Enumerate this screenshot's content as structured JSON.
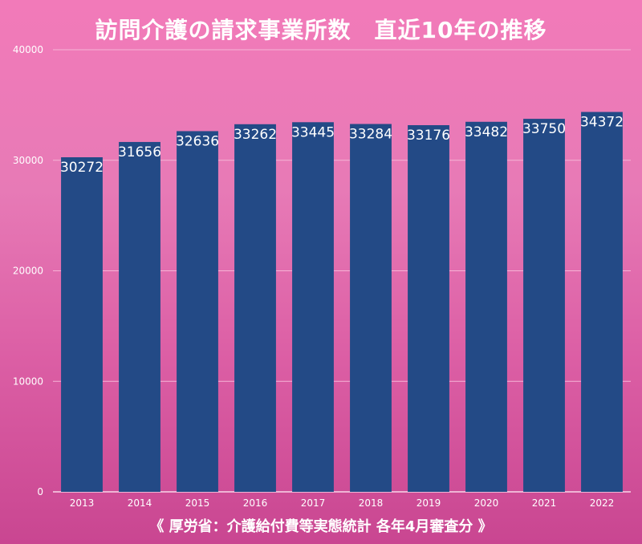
{
  "title": "訪問介護の請求事業所数　直近10年の推移",
  "source": "《 厚労省：介護給付費等実態統計 各年4月審査分 》",
  "colors": {
    "bar": "#234a86",
    "grid": "#f6b4d6",
    "axis": "#f9d6ea",
    "text": "#ffffff"
  },
  "chart_data": {
    "type": "bar",
    "title": "訪問介護の請求事業所数　直近10年の推移",
    "xlabel": "",
    "ylabel": "",
    "categories": [
      "2013",
      "2014",
      "2015",
      "2016",
      "2017",
      "2018",
      "2019",
      "2020",
      "2021",
      "2022"
    ],
    "values": [
      30272,
      31656,
      32636,
      33262,
      33445,
      33284,
      33176,
      33482,
      33750,
      34372
    ],
    "yticks": [
      0,
      10000,
      20000,
      30000,
      40000
    ],
    "ylim": [
      0,
      40000
    ],
    "grid": true
  }
}
